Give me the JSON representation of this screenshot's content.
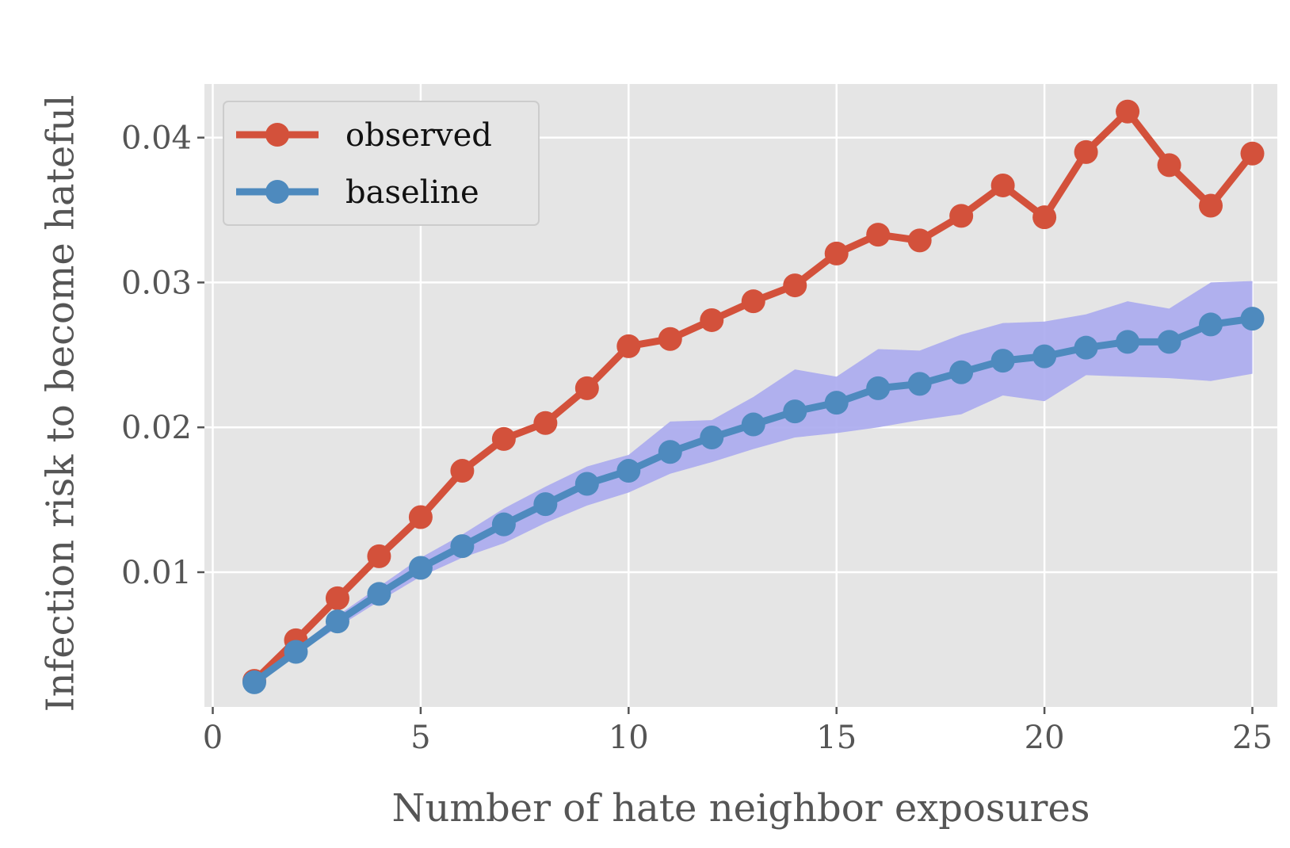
{
  "chart_data": {
    "type": "line",
    "xlabel": "Number of hate neighbor exposures",
    "ylabel": "Infection risk to become hateful",
    "xlim": [
      -0.2,
      25.6
    ],
    "ylim": [
      0.0007,
      0.0437
    ],
    "x_ticks": [
      0,
      5,
      10,
      15,
      20,
      25
    ],
    "x_tick_labels": [
      "0",
      "5",
      "10",
      "15",
      "20",
      "25"
    ],
    "y_ticks": [
      0.01,
      0.02,
      0.03,
      0.04
    ],
    "y_tick_labels": [
      "0.01",
      "0.02",
      "0.03",
      "0.04"
    ],
    "grid": true,
    "legend_position": "top-left",
    "x": [
      1,
      2,
      3,
      4,
      5,
      6,
      7,
      8,
      9,
      10,
      11,
      12,
      13,
      14,
      15,
      16,
      17,
      18,
      19,
      20,
      21,
      22,
      23,
      24,
      25
    ],
    "series": [
      {
        "name": "observed",
        "color": "#d3513b",
        "values": [
          0.0025,
          0.0053,
          0.0082,
          0.0111,
          0.0138,
          0.017,
          0.0192,
          0.0203,
          0.0227,
          0.0256,
          0.0261,
          0.0274,
          0.0287,
          0.0298,
          0.032,
          0.0333,
          0.0329,
          0.0346,
          0.0367,
          0.0345,
          0.039,
          0.0418,
          0.0381,
          0.0353,
          0.0389
        ]
      },
      {
        "name": "baseline",
        "color": "#4e8abe",
        "values": [
          0.0024,
          0.0045,
          0.0066,
          0.0085,
          0.0103,
          0.0118,
          0.0133,
          0.0147,
          0.0161,
          0.017,
          0.0183,
          0.0193,
          0.0202,
          0.0211,
          0.0217,
          0.0227,
          0.023,
          0.0238,
          0.0246,
          0.0249,
          0.0255,
          0.0259,
          0.0259,
          0.0271,
          0.0275
        ],
        "band_color": "#aaaaee",
        "band_lower": [
          0.0024,
          0.0043,
          0.0062,
          0.008,
          0.0097,
          0.011,
          0.012,
          0.0134,
          0.0146,
          0.0155,
          0.0168,
          0.0176,
          0.0185,
          0.0193,
          0.0196,
          0.02,
          0.0205,
          0.0209,
          0.0222,
          0.0218,
          0.0236,
          0.0235,
          0.0234,
          0.0232,
          0.0237
        ],
        "band_upper": [
          0.0025,
          0.0047,
          0.007,
          0.009,
          0.011,
          0.0126,
          0.0144,
          0.0159,
          0.0173,
          0.0181,
          0.0204,
          0.0205,
          0.0221,
          0.024,
          0.0235,
          0.0254,
          0.0253,
          0.0264,
          0.0272,
          0.0273,
          0.0278,
          0.0287,
          0.0282,
          0.03,
          0.0301
        ]
      }
    ]
  }
}
